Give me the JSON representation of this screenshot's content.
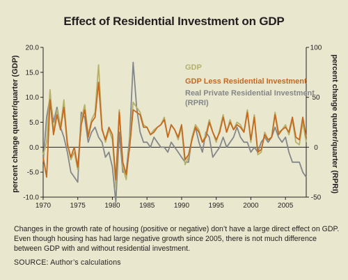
{
  "chart_data": {
    "type": "line",
    "title": "Effect of Residential Investment on GDP",
    "ylabel_left": "percent change quarter/quarter (GDP)",
    "ylabel_right": "percent change quarter/quarter (RPRI)",
    "xlim": [
      1970,
      2008
    ],
    "ylim_left": [
      -10,
      20
    ],
    "ylim_right": [
      -50,
      100
    ],
    "x_ticks": [
      "1970",
      "1975",
      "1980",
      "1985",
      "1990",
      "1995",
      "2000",
      "2005"
    ],
    "y_left_ticks": [
      "20.0",
      "15.0",
      "10.0",
      "5.0",
      "0.0",
      "-5.0",
      "-10.0"
    ],
    "y_right_ticks": [
      "100",
      "50",
      "0",
      "-50"
    ],
    "grid": false,
    "legend_position": "top-right",
    "series": [
      {
        "name": "GDP",
        "axis": "left",
        "color": "#b5b06a",
        "x": [
          1970,
          1970.5,
          1971,
          1971.5,
          1972,
          1972.5,
          1973,
          1973.5,
          1974,
          1974.5,
          1975,
          1975.5,
          1976,
          1976.5,
          1977,
          1977.5,
          1978,
          1978.5,
          1979,
          1979.5,
          1980,
          1980.5,
          1981,
          1981.5,
          1982,
          1982.5,
          1983,
          1983.5,
          1984,
          1984.5,
          1985,
          1985.5,
          1986,
          1986.5,
          1987,
          1987.5,
          1988,
          1988.5,
          1989,
          1989.5,
          1990,
          1990.5,
          1991,
          1991.5,
          1992,
          1992.5,
          1993,
          1993.5,
          1994,
          1994.5,
          1995,
          1995.5,
          1996,
          1996.5,
          1997,
          1997.5,
          1998,
          1998.5,
          1999,
          1999.5,
          2000,
          2000.5,
          2001,
          2001.5,
          2002,
          2002.5,
          2003,
          2003.5,
          2004,
          2004.5,
          2005,
          2005.5,
          2006,
          2006.5,
          2007,
          2007.5,
          2008
        ],
        "y": [
          -1.5,
          1.0,
          11.5,
          3.0,
          7.5,
          4.0,
          9.5,
          1.0,
          -2.5,
          -1.0,
          -4.5,
          5.5,
          8.5,
          2.5,
          5.5,
          7.0,
          16.5,
          4.0,
          1.0,
          3.5,
          1.5,
          -8.0,
          7.5,
          -4.0,
          -6.5,
          1.0,
          9.0,
          8.0,
          7.0,
          4.5,
          4.0,
          2.5,
          3.5,
          4.0,
          4.5,
          6.0,
          2.0,
          4.5,
          3.5,
          1.5,
          4.0,
          -3.5,
          -2.0,
          2.0,
          4.5,
          3.5,
          1.0,
          2.5,
          5.5,
          3.0,
          1.0,
          3.5,
          6.5,
          3.0,
          5.5,
          3.5,
          5.0,
          4.5,
          3.0,
          7.5,
          1.0,
          6.5,
          -1.5,
          -1.0,
          3.0,
          1.5,
          2.0,
          7.0,
          3.0,
          3.5,
          4.5,
          2.5,
          5.5,
          1.0,
          0.5,
          5.0,
          1.0
        ]
      },
      {
        "name": "GDP Less Residential Investment",
        "axis": "left",
        "color": "#c4691e",
        "x": [
          1970,
          1970.5,
          1971,
          1971.5,
          1972,
          1972.5,
          1973,
          1973.5,
          1974,
          1974.5,
          1975,
          1975.5,
          1976,
          1976.5,
          1977,
          1977.5,
          1978,
          1978.5,
          1979,
          1979.5,
          1980,
          1980.5,
          1981,
          1981.5,
          1982,
          1982.5,
          1983,
          1983.5,
          1984,
          1984.5,
          1985,
          1985.5,
          1986,
          1986.5,
          1987,
          1987.5,
          1988,
          1988.5,
          1989,
          1989.5,
          1990,
          1990.5,
          1991,
          1991.5,
          1992,
          1992.5,
          1993,
          1993.5,
          1994,
          1994.5,
          1995,
          1995.5,
          1996,
          1996.5,
          1997,
          1997.5,
          1998,
          1998.5,
          1999,
          1999.5,
          2000,
          2000.5,
          2001,
          2001.5,
          2002,
          2002.5,
          2003,
          2003.5,
          2004,
          2004.5,
          2005,
          2005.5,
          2006,
          2006.5,
          2007,
          2007.5,
          2008
        ],
        "y": [
          -2.0,
          -6.0,
          9.5,
          2.5,
          6.5,
          3.5,
          8.0,
          0.5,
          -2.0,
          0.0,
          -4.0,
          4.5,
          7.5,
          2.0,
          5.0,
          6.0,
          13.0,
          3.5,
          1.5,
          4.0,
          2.5,
          -6.5,
          7.0,
          -3.0,
          -5.5,
          0.0,
          7.5,
          7.0,
          6.5,
          4.0,
          4.0,
          2.5,
          3.0,
          4.0,
          4.5,
          5.5,
          2.0,
          4.5,
          3.5,
          2.0,
          4.5,
          -2.5,
          -1.5,
          1.5,
          4.0,
          3.0,
          1.0,
          2.0,
          5.0,
          3.0,
          1.5,
          3.0,
          6.0,
          3.0,
          5.0,
          3.5,
          4.5,
          4.0,
          3.0,
          7.0,
          1.5,
          6.0,
          -1.0,
          -0.5,
          2.5,
          1.5,
          2.0,
          6.5,
          2.5,
          3.5,
          4.0,
          3.0,
          6.0,
          2.0,
          1.5,
          6.0,
          2.0
        ]
      },
      {
        "name": "Real Private Residential Investment (RPRI)",
        "axis": "right",
        "color": "#84878a",
        "x": [
          1970,
          1970.5,
          1971,
          1971.5,
          1972,
          1972.5,
          1973,
          1973.5,
          1974,
          1974.5,
          1975,
          1975.5,
          1976,
          1976.5,
          1977,
          1977.5,
          1978,
          1978.5,
          1979,
          1979.5,
          1980,
          1980.5,
          1981,
          1981.5,
          1982,
          1982.5,
          1983,
          1983.5,
          1984,
          1984.5,
          1985,
          1985.5,
          1986,
          1986.5,
          1987,
          1987.5,
          1988,
          1988.5,
          1989,
          1989.5,
          1990,
          1990.5,
          1991,
          1991.5,
          1992,
          1992.5,
          1993,
          1993.5,
          1994,
          1994.5,
          1995,
          1995.5,
          1996,
          1996.5,
          1997,
          1997.5,
          1998,
          1998.5,
          1999,
          1999.5,
          2000,
          2000.5,
          2001,
          2001.5,
          2002,
          2002.5,
          2003,
          2003.5,
          2004,
          2004.5,
          2005,
          2005.5,
          2006,
          2006.5,
          2007,
          2007.5,
          2008
        ],
        "y": [
          -15,
          30,
          50,
          25,
          40,
          20,
          10,
          -5,
          -25,
          -30,
          -35,
          35,
          30,
          5,
          15,
          20,
          10,
          5,
          -10,
          -5,
          -20,
          -55,
          15,
          -25,
          -25,
          10,
          85,
          40,
          15,
          5,
          5,
          0,
          10,
          5,
          0,
          0,
          -5,
          5,
          0,
          -5,
          -10,
          -15,
          -15,
          10,
          20,
          5,
          -5,
          15,
          10,
          -10,
          -5,
          0,
          10,
          0,
          5,
          10,
          20,
          10,
          5,
          5,
          -5,
          0,
          -5,
          5,
          10,
          5,
          10,
          20,
          10,
          5,
          10,
          -5,
          -15,
          -15,
          -15,
          -25,
          -30
        ]
      }
    ]
  },
  "caption": "Changes in the growth rate of housing (positive or negative) don’t have a large direct effect on GDP.  Even though housing has had large negative growth since 2005, there is not much difference between GDP with and without residential investment.",
  "source": "SOURCE:  Author’s calculations"
}
